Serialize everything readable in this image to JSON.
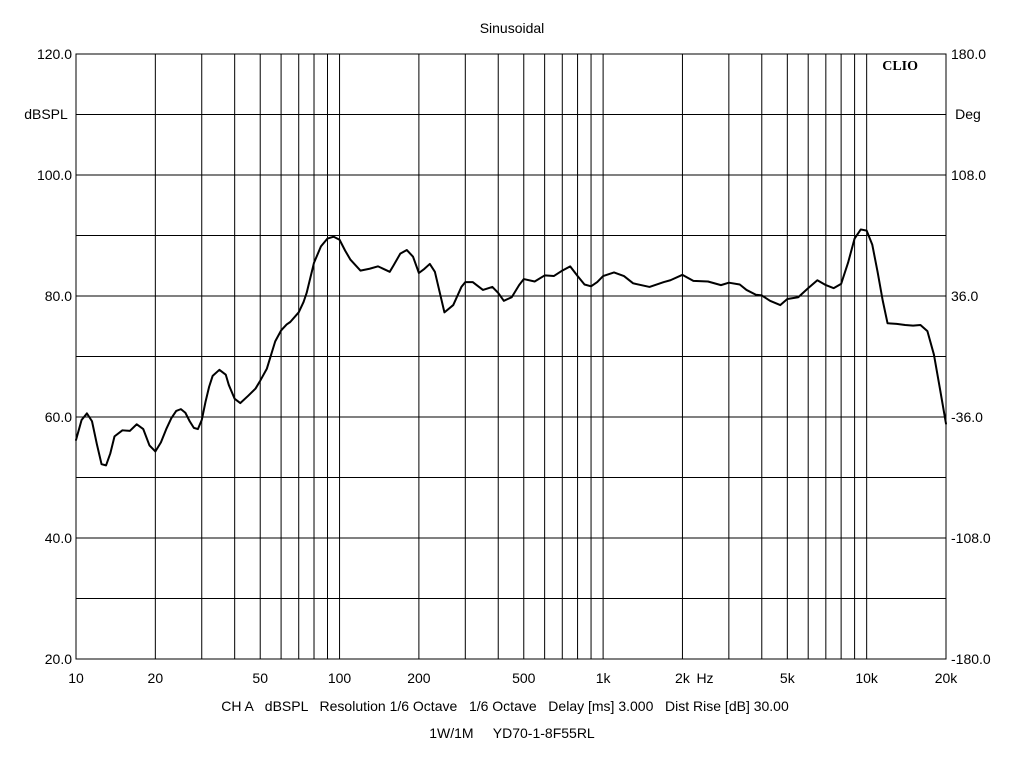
{
  "chart_data": {
    "type": "line",
    "title": "Sinusoidal",
    "watermark": "CLIO",
    "x_scale": "log",
    "xlim": [
      10,
      20000
    ],
    "x_ticks": [
      {
        "value": 10,
        "label": "10"
      },
      {
        "value": 20,
        "label": "20"
      },
      {
        "value": 50,
        "label": "50"
      },
      {
        "value": 100,
        "label": "100"
      },
      {
        "value": 200,
        "label": "200"
      },
      {
        "value": 500,
        "label": "500"
      },
      {
        "value": 1000,
        "label": "1k"
      },
      {
        "value": 2000,
        "label": "2k"
      },
      {
        "value": 5000,
        "label": "5k"
      },
      {
        "value": 10000,
        "label": "10k"
      },
      {
        "value": 20000,
        "label": "20k"
      }
    ],
    "x_unit": "Hz",
    "ylabel": "dBSPL",
    "ylim": [
      20,
      120
    ],
    "y_ticks": [
      {
        "value": 120,
        "label": "120.0"
      },
      {
        "value": 100,
        "label": "100.0"
      },
      {
        "value": 80,
        "label": "80.0"
      },
      {
        "value": 60,
        "label": "60.0"
      },
      {
        "value": 40,
        "label": "40.0"
      },
      {
        "value": 20,
        "label": "20.0"
      }
    ],
    "y2label": "Deg",
    "y2lim": [
      -180,
      180
    ],
    "y2_ticks": [
      {
        "value": 180,
        "label": "180.0"
      },
      {
        "value": 108,
        "label": "108.0"
      },
      {
        "value": 36,
        "label": "36.0"
      },
      {
        "value": -36,
        "label": "-36.0"
      },
      {
        "value": -108,
        "label": "-108.0"
      },
      {
        "value": -180,
        "label": "-180.0"
      }
    ],
    "grid": true,
    "footer_line1": "CH A   dBSPL   Resolution 1/6 Octave   1/6 Octave   Delay [ms] 3.000   Dist Rise [dB] 30.00",
    "footer_line2": "1W/1M     YD70-1-8F55RL",
    "series": [
      {
        "color": "#000000",
        "x": [
          10,
          10.5,
          11,
          11.5,
          12,
          12.5,
          13,
          13.5,
          14,
          15,
          16,
          17,
          18,
          19,
          20,
          21,
          22,
          23,
          24,
          25,
          26,
          27,
          28,
          29,
          30,
          31,
          32,
          33,
          35,
          37,
          38,
          40,
          42,
          45,
          48,
          50,
          53,
          55,
          57,
          60,
          63,
          65,
          70,
          73,
          75,
          80,
          85,
          90,
          95,
          100,
          105,
          110,
          120,
          130,
          140,
          155,
          160,
          170,
          180,
          190,
          200,
          210,
          220,
          230,
          250,
          270,
          290,
          300,
          320,
          350,
          380,
          400,
          420,
          450,
          480,
          500,
          550,
          600,
          650,
          700,
          750,
          800,
          850,
          900,
          950,
          1000,
          1100,
          1200,
          1300,
          1500,
          1700,
          1800,
          2000,
          2200,
          2500,
          2800,
          3000,
          3300,
          3500,
          3800,
          4000,
          4300,
          4700,
          5000,
          5500,
          6000,
          6500,
          7000,
          7500,
          8000,
          8500,
          9000,
          9500,
          10000,
          10500,
          11000,
          11500,
          12000,
          13000,
          14000,
          15000,
          16000,
          17000,
          18000,
          19000,
          20000
        ],
        "y": [
          56.2,
          59.5,
          60.6,
          59.3,
          55.5,
          52.2,
          52.0,
          54.0,
          56.8,
          57.8,
          57.7,
          58.8,
          58.0,
          55.3,
          54.3,
          55.8,
          58.0,
          59.8,
          61.0,
          61.3,
          60.7,
          59.3,
          58.2,
          58.0,
          59.5,
          62.5,
          65.0,
          66.8,
          67.8,
          67.0,
          65.3,
          63.0,
          62.3,
          63.5,
          64.7,
          66.0,
          68.0,
          70.3,
          72.5,
          74.3,
          75.3,
          75.7,
          77.3,
          79.0,
          80.5,
          85.5,
          88.2,
          89.5,
          89.8,
          89.3,
          87.5,
          86.0,
          84.2,
          84.5,
          84.9,
          84.0,
          85.0,
          87.0,
          87.6,
          86.5,
          83.8,
          84.5,
          85.3,
          84.0,
          77.3,
          78.5,
          81.5,
          82.3,
          82.3,
          81.0,
          81.5,
          80.5,
          79.2,
          79.8,
          81.8,
          82.8,
          82.4,
          83.4,
          83.3,
          84.2,
          84.9,
          83.3,
          81.9,
          81.6,
          82.3,
          83.3,
          83.9,
          83.3,
          82.1,
          81.5,
          82.3,
          82.6,
          83.5,
          82.5,
          82.4,
          81.8,
          82.2,
          81.9,
          81.0,
          80.2,
          80.1,
          79.2,
          78.5,
          79.5,
          79.8,
          81.3,
          82.6,
          81.8,
          81.3,
          82.0,
          85.5,
          89.5,
          91.0,
          90.8,
          88.5,
          84.0,
          79.3,
          75.5,
          75.4,
          75.2,
          75.1,
          75.2,
          74.2,
          70.3,
          64.5,
          58.9
        ]
      }
    ]
  }
}
